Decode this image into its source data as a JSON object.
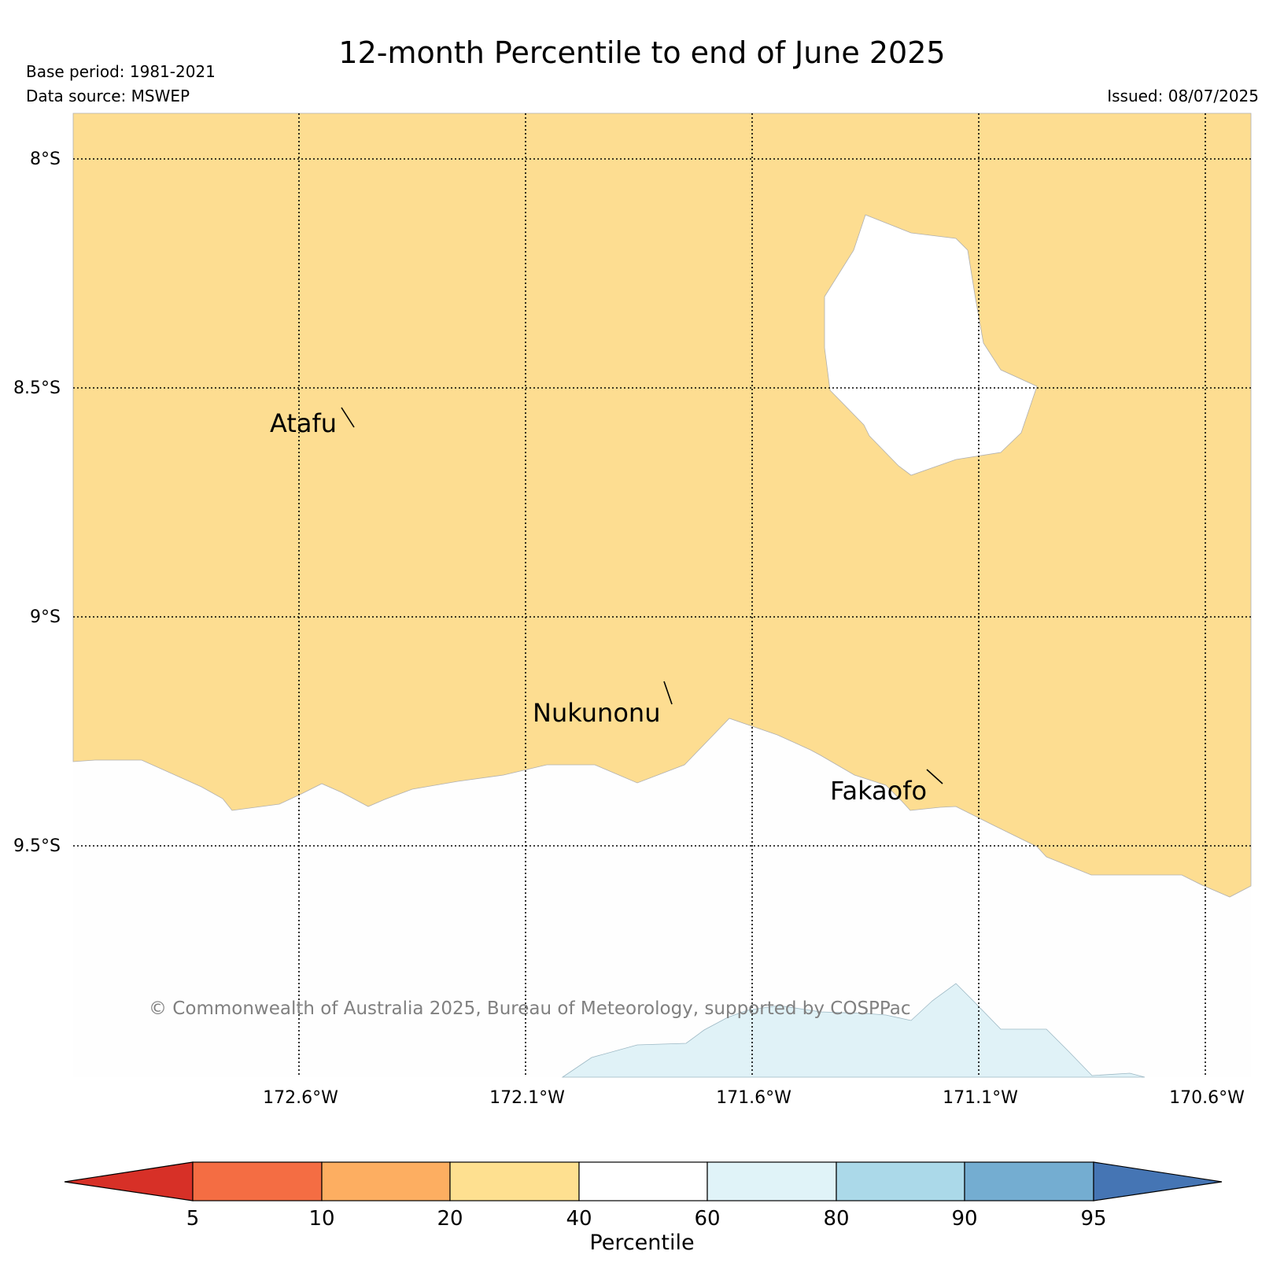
{
  "header": {
    "title": "12-month Percentile to end of June 2025",
    "base_period": "Base period: 1981-2021",
    "data_source": "Data source: MSWEP",
    "issued": "Issued: 08/07/2025"
  },
  "map": {
    "lat_labels": [
      "8°S",
      "8.5°S",
      "9°S",
      "9.5°S"
    ],
    "lon_labels": [
      "172.6°W",
      "172.1°W",
      "171.6°W",
      "171.1°W",
      "170.6°W"
    ],
    "places": [
      {
        "name": "Atafu"
      },
      {
        "name": "Nukunonu"
      },
      {
        "name": "Fakaofo"
      }
    ],
    "regions": [
      {
        "category": "20-40",
        "color": "#fddd91"
      },
      {
        "category": "40-60",
        "color": "#ffffff"
      },
      {
        "category": "60-80",
        "color": "#e0f2f7"
      }
    ],
    "copyright": "© Commonwealth of Australia 2025, Bureau of Meteorology, supported by COSPPac"
  },
  "colorbar": {
    "ticks": [
      "5",
      "10",
      "20",
      "40",
      "60",
      "80",
      "90",
      "95"
    ],
    "label": "Percentile",
    "under_color": "#d73027",
    "over_color": "#4575b4",
    "colors": [
      "#f46d43",
      "#fdae61",
      "#fee090",
      "#ffffff",
      "#e0f3f8",
      "#abd9e9",
      "#74add1"
    ]
  }
}
